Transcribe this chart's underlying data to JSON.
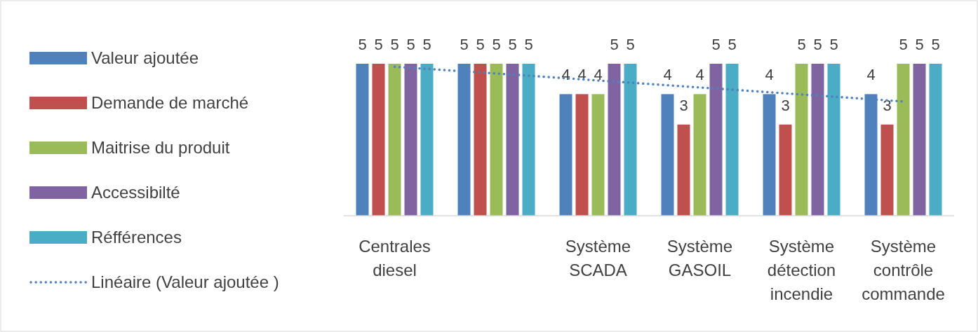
{
  "chart_data": {
    "type": "bar",
    "categories": [
      "Centrales diesel",
      null,
      "Système SCADA",
      "Système GASOIL",
      "Système détection incendie",
      "Système contrôle commande"
    ],
    "ylim": [
      0,
      5
    ],
    "legend": "left",
    "tick_labels": "x",
    "series": [
      {
        "name": "Valeur ajoutée",
        "color": "#4f81bd",
        "values": [
          5,
          5,
          4,
          4,
          4,
          4
        ],
        "value_labels": [
          "5",
          "5",
          "4",
          "4",
          "4",
          "4"
        ]
      },
      {
        "name": "Demande de marché",
        "color": "#c0504d",
        "values": [
          5,
          5,
          4,
          3,
          3,
          3
        ],
        "value_labels": [
          "5",
          "5",
          "4",
          "3",
          "3",
          "3"
        ]
      },
      {
        "name": "Maitrise du produit",
        "color": "#9bbb59",
        "values": [
          5,
          5,
          4,
          4,
          5,
          5
        ],
        "value_labels": [
          "5",
          "5",
          "4",
          "4",
          "5",
          "5"
        ]
      },
      {
        "name": "Accessibilté",
        "color": "#8064a2",
        "values": [
          5,
          5,
          5,
          5,
          5,
          5
        ],
        "value_labels": [
          "5",
          "5",
          "5",
          "5",
          "5",
          "5"
        ]
      },
      {
        "name": "Réfférences",
        "color": "#4bacc6",
        "values": [
          5,
          5,
          5,
          5,
          5,
          5
        ],
        "value_labels": [
          "5",
          "5",
          "5",
          "5",
          "5",
          "5"
        ]
      },
      {
        "name": "Linéaire (Valeur ajoutée )",
        "type": "line",
        "line_style": "dotted",
        "color": "#4f81bd",
        "values": [
          4.9,
          4.68,
          4.45,
          4.22,
          3.99,
          3.76
        ]
      }
    ]
  }
}
